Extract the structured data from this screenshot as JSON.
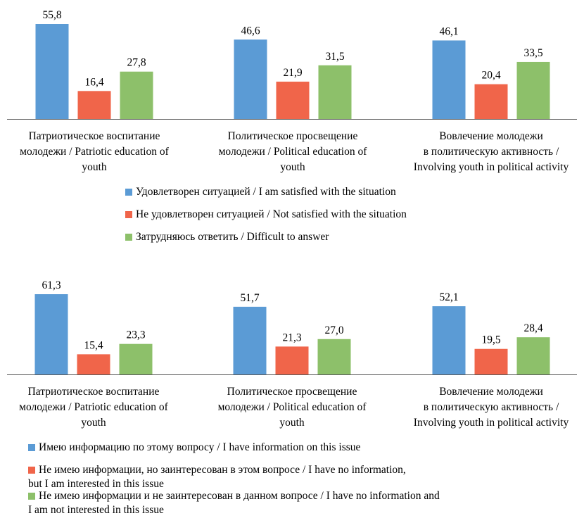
{
  "colors": {
    "series1": "#5B9BD5",
    "series2": "#F0654A",
    "series3": "#8DC06A",
    "axis": "#595959"
  },
  "chart_data": [
    {
      "type": "bar",
      "categories": [
        "Патриотическое воспитание молодежи / Patriotic education of youth",
        "Политическое просвещение молодежи / Political education of youth",
        "Вовлечение молодежи в политическую активность / Involving youth in political activity"
      ],
      "category_lines": [
        [
          "Патриотическое воспитание",
          "молодежи / Patriotic education of",
          "youth"
        ],
        [
          "Политическое просвещение",
          "молодежи / Political education of",
          "youth"
        ],
        [
          "Вовлечение молодежи",
          "в политическую активность /",
          "Involving youth in political activity"
        ]
      ],
      "series": [
        {
          "name": "Удовлетворен ситуацией / I am satisfied with the situation",
          "values": [
            55.8,
            46.6,
            46.1
          ],
          "labels": [
            "55,8",
            "46,6",
            "46,1"
          ]
        },
        {
          "name": "Не удовлетворен ситуацией / Not satisfied with the situation",
          "values": [
            16.4,
            21.9,
            20.4
          ],
          "labels": [
            "16,4",
            "21,9",
            "20,4"
          ]
        },
        {
          "name": "Затрудняюсь ответить / Difficult to answer",
          "values": [
            27.8,
            31.5,
            33.5
          ],
          "labels": [
            "27,8",
            "31,5",
            "33,5"
          ]
        }
      ],
      "ylim": [
        0,
        55.8
      ],
      "grid": false,
      "legend_position": "bottom"
    },
    {
      "type": "bar",
      "categories": [
        "Патриотическое воспитание молодежи / Patriotic education of youth",
        "Политическое просвещение молодежи / Political education of youth",
        "Вовлечение молодежи в политическую активность / Involving youth in political activity"
      ],
      "category_lines": [
        [
          "Патриотическое воспитание",
          "молодежи / Patriotic education of",
          "youth"
        ],
        [
          "Политическое просвещение",
          "молодежи / Political education of",
          "youth"
        ],
        [
          "Вовлечение молодежи",
          "в политическую активность /",
          "Involving youth in political activity"
        ]
      ],
      "series": [
        {
          "name": "Имею информацию по этому вопросу / I have information on this issue",
          "values": [
            61.3,
            51.7,
            52.1
          ],
          "labels": [
            "61,3",
            "51,7",
            "52,1"
          ]
        },
        {
          "name": "Не имею информации, но заинтересован в этом вопросе / I have no information, but I am interested in this issue",
          "values": [
            15.4,
            21.3,
            19.5
          ],
          "labels": [
            "15,4",
            "21,3",
            "19,5"
          ]
        },
        {
          "name": "Не имею информации и не заинтересован в данном вопросе / I have no information and I am not interested in this issue",
          "values": [
            23.3,
            27.0,
            28.4
          ],
          "labels": [
            "23,3",
            "27,0",
            "28,4"
          ]
        }
      ],
      "ylim": [
        0,
        61.3
      ],
      "grid": false,
      "legend_position": "bottom"
    }
  ],
  "legends": [
    [
      {
        "lines": [
          "Удовлетворен ситуацией / I am satisfied with the situation"
        ]
      },
      {
        "lines": [
          "Не удовлетворен ситуацией / Not satisfied with the situation"
        ]
      },
      {
        "lines": [
          "Затрудняюсь ответить / Difficult to answer"
        ]
      }
    ],
    [
      {
        "lines": [
          "Имею информацию по этому вопросу / I have information on this issue"
        ]
      },
      {
        "lines": [
          "Не имею информации, но заинтересован в этом вопросе / I have no information,",
          "but I am interested in this issue"
        ]
      },
      {
        "lines": [
          "Не имею информации и не заинтересован в данном вопросе / I have no information and",
          "I am not interested in this issue"
        ]
      }
    ]
  ]
}
